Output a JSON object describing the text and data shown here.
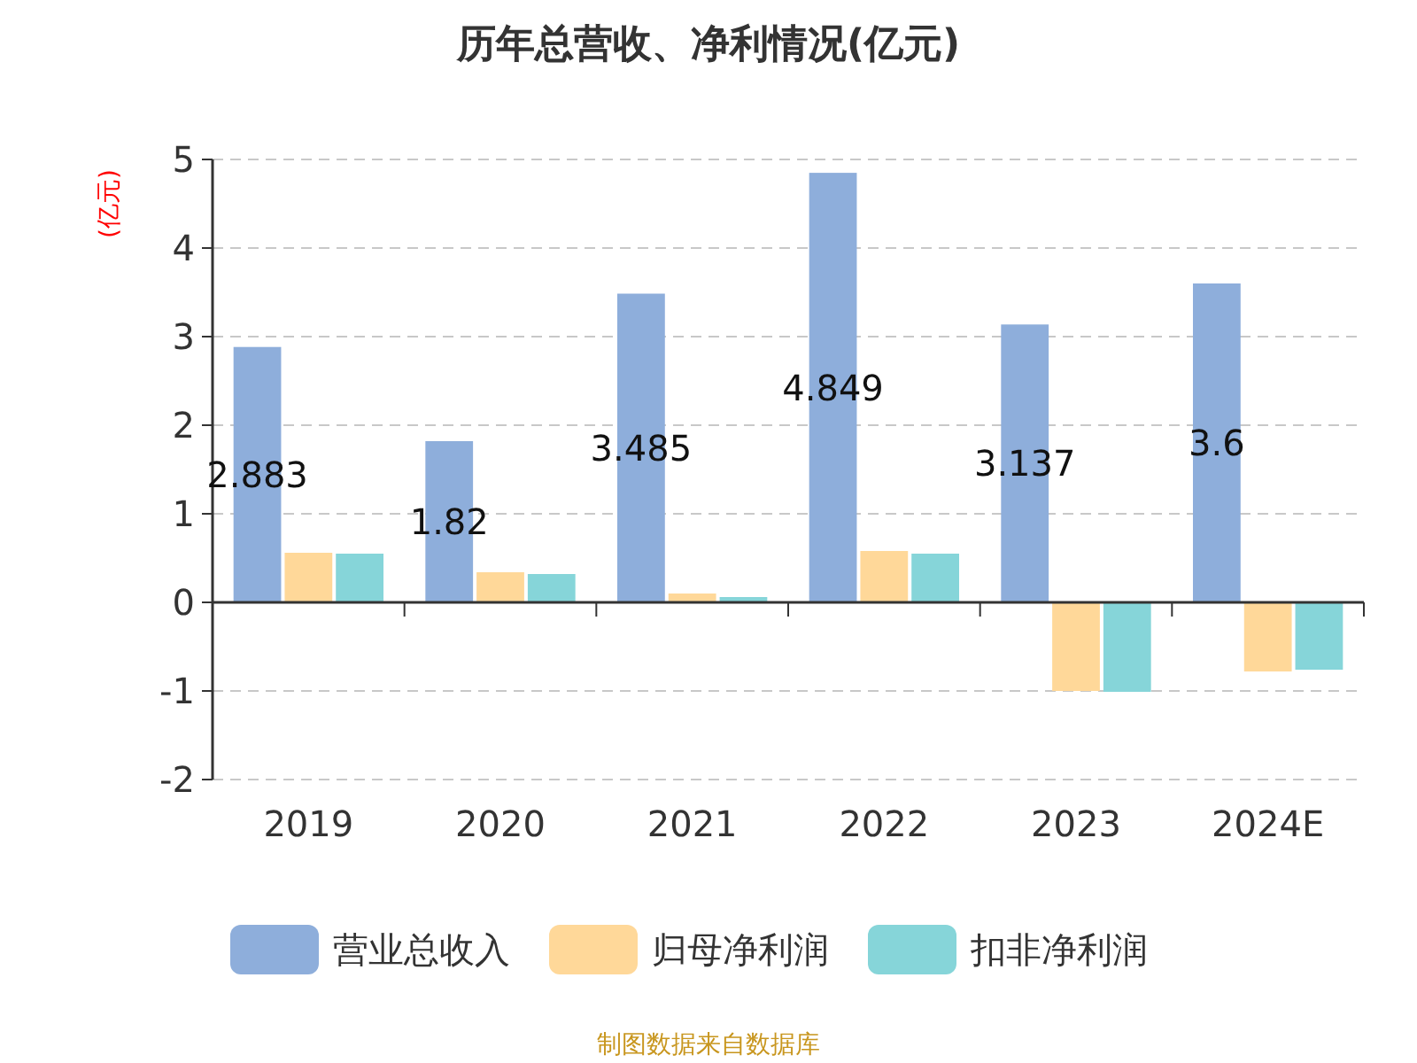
{
  "chart_data": {
    "type": "bar",
    "title": "历年总营收、净利情况(亿元)",
    "ylabel": "(亿元)",
    "categories": [
      "2019",
      "2020",
      "2021",
      "2022",
      "2023",
      "2024E"
    ],
    "series": [
      {
        "name": "营业总收入",
        "color": "#8eaedb",
        "values": [
          2.883,
          1.82,
          3.485,
          4.849,
          3.137,
          3.6
        ],
        "value_labels": [
          "2.883",
          "1.82",
          "3.485",
          "4.849",
          "3.137",
          "3.6"
        ]
      },
      {
        "name": "归母净利润",
        "color": "#ffd899",
        "values": [
          0.56,
          0.34,
          0.1,
          0.58,
          -1.0,
          -0.78
        ]
      },
      {
        "name": "扣非净利润",
        "color": "#86d5d9",
        "values": [
          0.55,
          0.32,
          0.06,
          0.55,
          -1.01,
          -0.76
        ]
      }
    ],
    "ylim": [
      -2,
      5
    ],
    "yticks": [
      -2,
      -1,
      0,
      1,
      2,
      3,
      4,
      5
    ],
    "grid": "y",
    "legend": "bottom",
    "annotations": [
      "制图数据来自数据库"
    ]
  }
}
